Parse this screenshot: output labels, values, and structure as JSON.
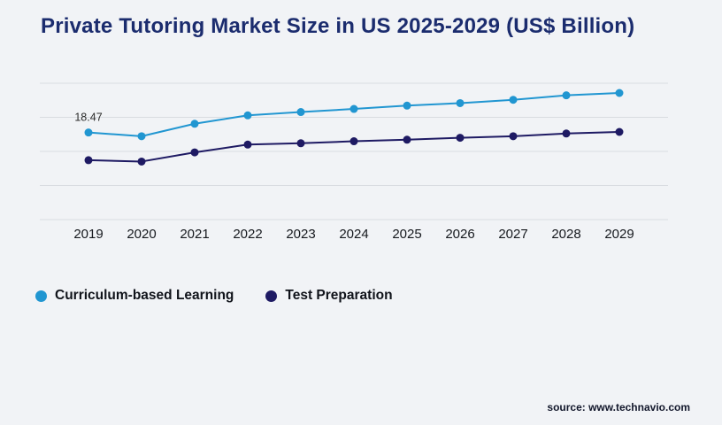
{
  "title": "Private Tutoring Market Size in US 2025-2029 (US$ Billion)",
  "source_text": "source: www.technavio.com",
  "colors": {
    "background": "#f1f3f6",
    "title": "#1b2c6e",
    "gridline": "#d9dce1",
    "axis_text": "#15181d",
    "annotation_text": "#2b2b2b"
  },
  "chart_data": {
    "type": "line",
    "title": "Private Tutoring Market Size in US 2025-2029 (US$ Billion)",
    "categories": [
      "2019",
      "2020",
      "2021",
      "2022",
      "2023",
      "2024",
      "2025",
      "2026",
      "2027",
      "2028",
      "2029"
    ],
    "series": [
      {
        "name": "Curriculum-based Learning",
        "color": "#2196d1",
        "values": [
          18.47,
          18.28,
          18.92,
          19.35,
          19.52,
          19.68,
          19.85,
          19.98,
          20.15,
          20.38,
          20.5
        ]
      },
      {
        "name": "Test Preparation",
        "color": "#1e1a63",
        "values": [
          17.05,
          16.98,
          17.45,
          17.85,
          17.92,
          18.02,
          18.1,
          18.2,
          18.28,
          18.42,
          18.5
        ]
      }
    ],
    "annotations": [
      {
        "series_index": 0,
        "point_index": 0,
        "text": "18.47"
      }
    ],
    "ylim": [
      14,
      21
    ],
    "grid": "horizontal",
    "gridline_count": 5,
    "y_axis_labels_visible": false,
    "legend_position": "bottom"
  }
}
